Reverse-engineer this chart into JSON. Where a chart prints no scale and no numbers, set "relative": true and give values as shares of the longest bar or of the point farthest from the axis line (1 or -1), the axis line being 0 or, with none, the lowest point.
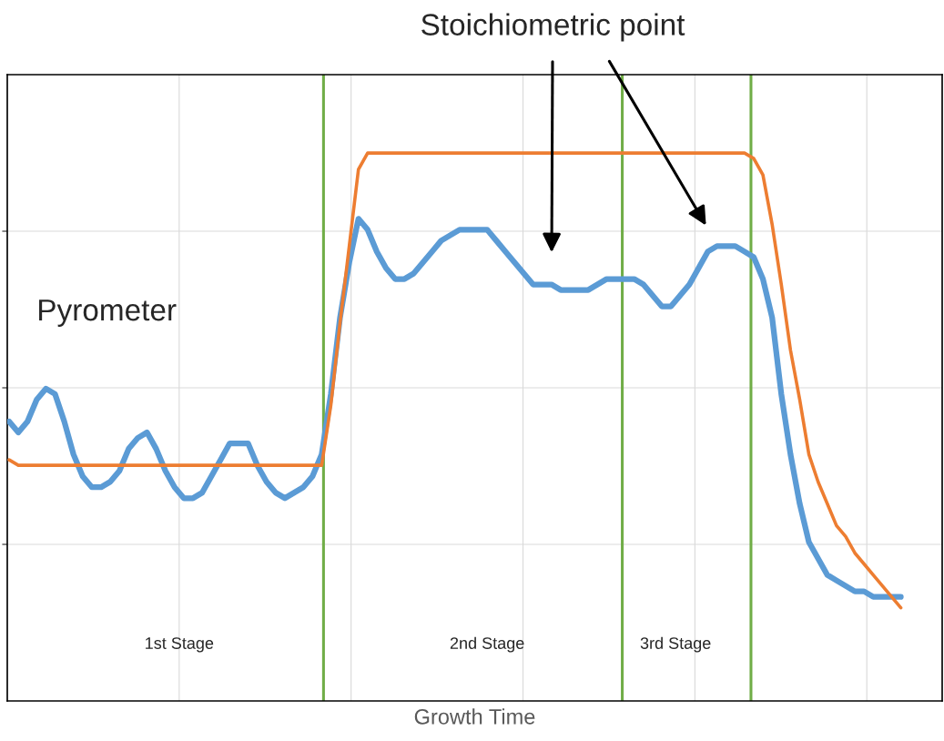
{
  "chart_data": {
    "type": "line",
    "relative": true,
    "xlabel": "Growth Time",
    "categories": [
      null,
      null,
      null,
      null,
      null,
      null,
      null,
      null,
      null,
      null,
      null,
      null,
      null,
      null,
      null,
      null,
      null,
      null,
      null,
      null,
      null,
      null,
      null,
      null,
      null,
      null,
      null,
      null,
      null,
      null,
      null,
      null,
      null,
      null,
      null,
      null,
      null,
      null,
      null,
      null,
      null,
      null,
      null,
      null,
      null,
      null,
      null,
      null,
      null,
      null,
      null,
      null,
      null,
      null,
      null,
      null,
      null,
      null,
      null,
      null,
      null,
      null,
      null,
      null,
      null,
      null,
      null,
      null,
      null,
      null,
      null,
      null,
      null,
      null,
      null,
      null,
      null,
      null,
      null,
      null,
      null,
      null,
      null,
      null,
      null,
      null,
      null,
      null,
      null,
      null,
      null,
      null,
      null,
      null,
      null,
      null,
      null,
      null
    ],
    "series": [
      {
        "color": "#ed7d31",
        "values": [
          0.44,
          0.43,
          0.43,
          0.43,
          0.43,
          0.43,
          0.43,
          0.43,
          0.43,
          0.43,
          0.43,
          0.43,
          0.43,
          0.43,
          0.43,
          0.43,
          0.43,
          0.43,
          0.43,
          0.43,
          0.43,
          0.43,
          0.43,
          0.43,
          0.43,
          0.43,
          0.43,
          0.43,
          0.43,
          0.43,
          0.43,
          0.43,
          0.43,
          0.43,
          0.43,
          0.54,
          0.69,
          0.83,
          0.97,
          1.0,
          1.0,
          1.0,
          1.0,
          1.0,
          1.0,
          1.0,
          1.0,
          1.0,
          1.0,
          1.0,
          1.0,
          1.0,
          1.0,
          1.0,
          1.0,
          1.0,
          1.0,
          1.0,
          1.0,
          1.0,
          1.0,
          1.0,
          1.0,
          1.0,
          1.0,
          1.0,
          1.0,
          1.0,
          1.0,
          1.0,
          1.0,
          1.0,
          1.0,
          1.0,
          1.0,
          1.0,
          1.0,
          1.0,
          1.0,
          1.0,
          1.0,
          0.99,
          0.96,
          0.87,
          0.76,
          0.64,
          0.55,
          0.45,
          0.4,
          0.36,
          0.32,
          0.3,
          0.27,
          0.25,
          0.23,
          0.21,
          0.19,
          0.17
        ]
      },
      {
        "color": "#5b9bd5",
        "values": [
          0.51,
          0.49,
          0.51,
          0.55,
          0.57,
          0.56,
          0.51,
          0.45,
          0.41,
          0.39,
          0.39,
          0.4,
          0.42,
          0.46,
          0.48,
          0.49,
          0.46,
          0.42,
          0.39,
          0.37,
          0.37,
          0.38,
          0.41,
          0.44,
          0.47,
          0.47,
          0.47,
          0.43,
          0.4,
          0.38,
          0.37,
          0.38,
          0.39,
          0.41,
          0.45,
          0.56,
          0.7,
          0.8,
          0.88,
          0.86,
          0.82,
          0.79,
          0.77,
          0.77,
          0.78,
          0.8,
          0.82,
          0.84,
          0.85,
          0.86,
          0.86,
          0.86,
          0.86,
          0.84,
          0.82,
          0.8,
          0.78,
          0.76,
          0.76,
          0.76,
          0.75,
          0.75,
          0.75,
          0.75,
          0.76,
          0.77,
          0.77,
          0.77,
          0.77,
          0.76,
          0.74,
          0.72,
          0.72,
          0.74,
          0.76,
          0.79,
          0.82,
          0.83,
          0.83,
          0.83,
          0.82,
          0.81,
          0.77,
          0.7,
          0.56,
          0.45,
          0.36,
          0.29,
          0.26,
          0.23,
          0.22,
          0.21,
          0.2,
          0.2,
          0.19,
          0.19,
          0.19,
          0.19
        ]
      }
    ],
    "annotations": [
      "Stoichiometric point",
      "Pyrometer",
      "1st Stage",
      "2nd Stage",
      "3rd Stage"
    ],
    "grid": true,
    "tick_labels": false,
    "line_style": "solid",
    "marker": "none"
  }
}
